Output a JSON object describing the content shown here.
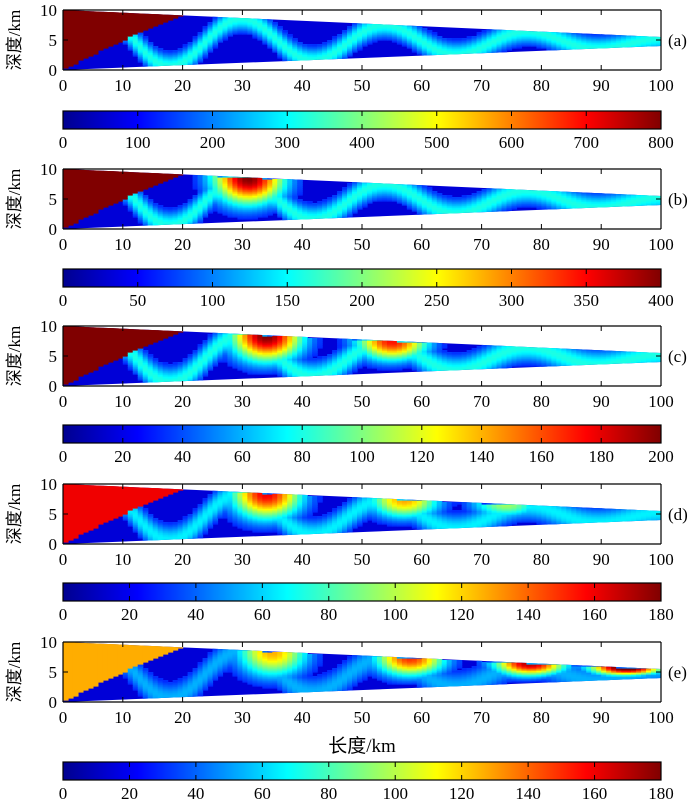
{
  "chart_data": {
    "type": "heatmap",
    "xlabel": "长度/km",
    "x_ticks": [
      "0",
      "10",
      "20",
      "30",
      "40",
      "50",
      "60",
      "70",
      "80",
      "90",
      "100"
    ],
    "y_ticks": [
      "0",
      "5",
      "10"
    ],
    "colormap": [
      "#00008f",
      "#0000ff",
      "#0080ff",
      "#00ffff",
      "#80ff80",
      "#ffff00",
      "#ff8000",
      "#ff0000",
      "#800000"
    ],
    "panels": [
      {
        "label": "(a)",
        "ylabel": "深度/km",
        "xlim": [
          0,
          100
        ],
        "ylim": [
          0,
          10
        ],
        "top_depth": [
          10,
          5.5
        ],
        "bottom_depth": [
          0,
          4
        ],
        "colorbar": {
          "range": [
            0,
            800
          ],
          "ticks": [
            "0",
            "100",
            "200",
            "300",
            "400",
            "500",
            "600",
            "700",
            "800"
          ]
        },
        "amplitude": 1.0,
        "decay": 0,
        "period_km": 24,
        "phase_km": 6,
        "crests_km": [],
        "band_width": 2.2
      },
      {
        "label": "(b)",
        "ylabel": "深度/km",
        "xlim": [
          0,
          100
        ],
        "ylim": [
          0,
          10
        ],
        "top_depth": [
          10,
          5.5
        ],
        "bottom_depth": [
          0,
          4
        ],
        "colorbar": {
          "range": [
            0,
            400
          ],
          "ticks": [
            "0",
            "50",
            "100",
            "150",
            "200",
            "250",
            "300",
            "350",
            "400"
          ]
        },
        "amplitude": 1.0,
        "decay": 0,
        "period_km": 24,
        "phase_km": 6,
        "crests_km": [
          31
        ],
        "band_width": 2.4
      },
      {
        "label": "(c)",
        "ylabel": "深度/km",
        "xlim": [
          0,
          100
        ],
        "ylim": [
          0,
          10
        ],
        "top_depth": [
          10,
          5.5
        ],
        "bottom_depth": [
          0,
          4
        ],
        "colorbar": {
          "range": [
            0,
            200
          ],
          "ticks": [
            "0",
            "20",
            "40",
            "60",
            "80",
            "100",
            "120",
            "140",
            "160",
            "180",
            "200"
          ]
        },
        "amplitude": 1.0,
        "decay": 0.15,
        "period_km": 24,
        "phase_km": 6,
        "crests_km": [
          34,
          55
        ],
        "band_width": 2.6
      },
      {
        "label": "(d)",
        "ylabel": "深度/km",
        "xlim": [
          0,
          100
        ],
        "ylim": [
          0,
          10
        ],
        "top_depth": [
          10,
          5.5
        ],
        "bottom_depth": [
          0,
          4
        ],
        "colorbar": {
          "range": [
            0,
            180
          ],
          "ticks": [
            "0",
            "20",
            "40",
            "60",
            "80",
            "100",
            "120",
            "140",
            "160",
            "180"
          ]
        },
        "amplitude": 0.88,
        "decay": 0.22,
        "period_km": 24,
        "phase_km": 6,
        "crests_km": [
          34,
          57,
          74
        ],
        "band_width": 2.6
      },
      {
        "label": "(e)",
        "ylabel": "深度/km",
        "xlim": [
          0,
          100
        ],
        "ylim": [
          0,
          10
        ],
        "top_depth": [
          10,
          5.5
        ],
        "bottom_depth": [
          0,
          4
        ],
        "colorbar": {
          "range": [
            0,
            180
          ],
          "ticks": [
            "0",
            "20",
            "40",
            "60",
            "80",
            "100",
            "120",
            "140",
            "160",
            "180"
          ]
        },
        "amplitude": 0.68,
        "decay": -0.2,
        "period_km": 24,
        "phase_km": 6,
        "crests_km": [
          35,
          58,
          78,
          94
        ],
        "band_width": 2.8
      }
    ]
  }
}
